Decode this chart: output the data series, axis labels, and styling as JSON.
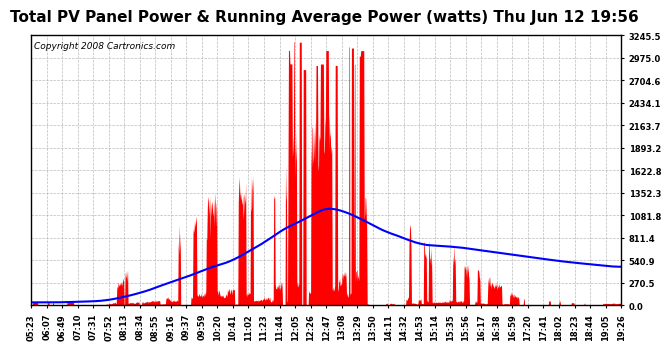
{
  "title": "Total PV Panel Power & Running Average Power (watts) Thu Jun 12 19:56",
  "copyright": "Copyright 2008 Cartronics.com",
  "yticks": [
    0.0,
    270.5,
    540.9,
    811.4,
    1081.8,
    1352.3,
    1622.8,
    1893.2,
    2163.7,
    2434.1,
    2704.6,
    2975.0,
    3245.5
  ],
  "ymax": 3245.5,
  "ymin": 0.0,
  "bg_color": "#ffffff",
  "fill_color": "#ff0000",
  "avg_line_color": "#0000ff",
  "title_fontsize": 11,
  "copyright_fontsize": 6.5,
  "grid_color": "#aaaaaa",
  "xtick_labels": [
    "05:23",
    "06:07",
    "06:49",
    "07:10",
    "07:31",
    "07:52",
    "08:13",
    "08:34",
    "08:55",
    "09:16",
    "09:37",
    "09:59",
    "10:20",
    "10:41",
    "11:02",
    "11:23",
    "11:44",
    "12:05",
    "12:26",
    "12:47",
    "13:08",
    "13:29",
    "13:50",
    "14:11",
    "14:32",
    "14:53",
    "15:14",
    "15:35",
    "15:56",
    "16:17",
    "16:38",
    "16:59",
    "17:20",
    "17:41",
    "18:02",
    "18:23",
    "18:44",
    "19:05",
    "19:26"
  ]
}
